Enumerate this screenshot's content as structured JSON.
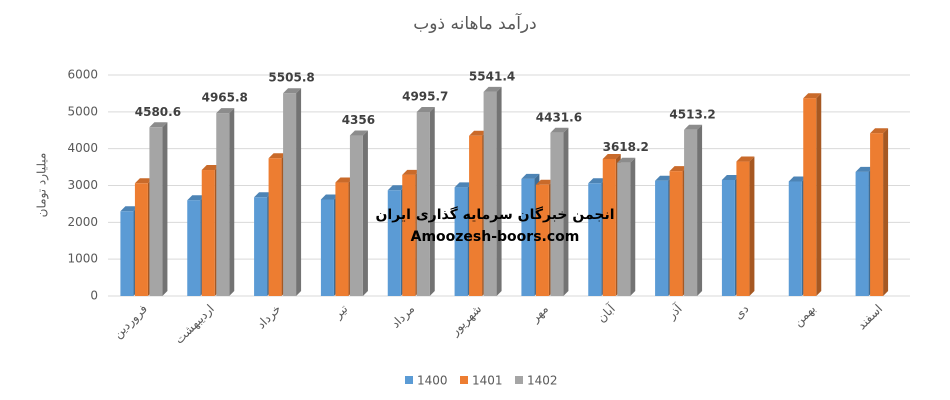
{
  "chart_data": {
    "type": "bar",
    "title": "درآمد ماهانه ذوب",
    "y_label": "میلیارد تومان",
    "annotations": [
      "انجمن خبرگان سرمایه گذاری ایران",
      "Amoozesh-boors.com"
    ],
    "categories": [
      "فروردین",
      "اردیبهشت",
      "خرداد",
      "تیر",
      "مرداد",
      "شهریور",
      "مهر",
      "آبان",
      "آذر",
      "دی",
      "بهمن",
      "اسفند"
    ],
    "series": [
      {
        "name": "1400",
        "color": "#5b9bd5",
        "values": [
          2300,
          2600,
          2680,
          2620,
          2870,
          2950,
          3180,
          3060,
          3130,
          3150,
          3110,
          3370
        ]
      },
      {
        "name": "1401",
        "color": "#ed7d31",
        "values": [
          3060,
          3420,
          3740,
          3080,
          3290,
          4350,
          3020,
          3720,
          3390,
          3650,
          5370,
          4420
        ]
      },
      {
        "name": "1402",
        "color": "#a5a5a5",
        "values": [
          4580.6,
          4965.8,
          5505.8,
          4356,
          4995.7,
          5541.4,
          4431.6,
          3618.2,
          4513.2,
          null,
          null,
          null
        ],
        "show_labels": true
      }
    ],
    "ylim": [
      0,
      6000
    ],
    "yticks": [
      0,
      1000,
      2000,
      3000,
      4000,
      5000,
      6000
    ],
    "grid": true,
    "legend": "bottom"
  }
}
